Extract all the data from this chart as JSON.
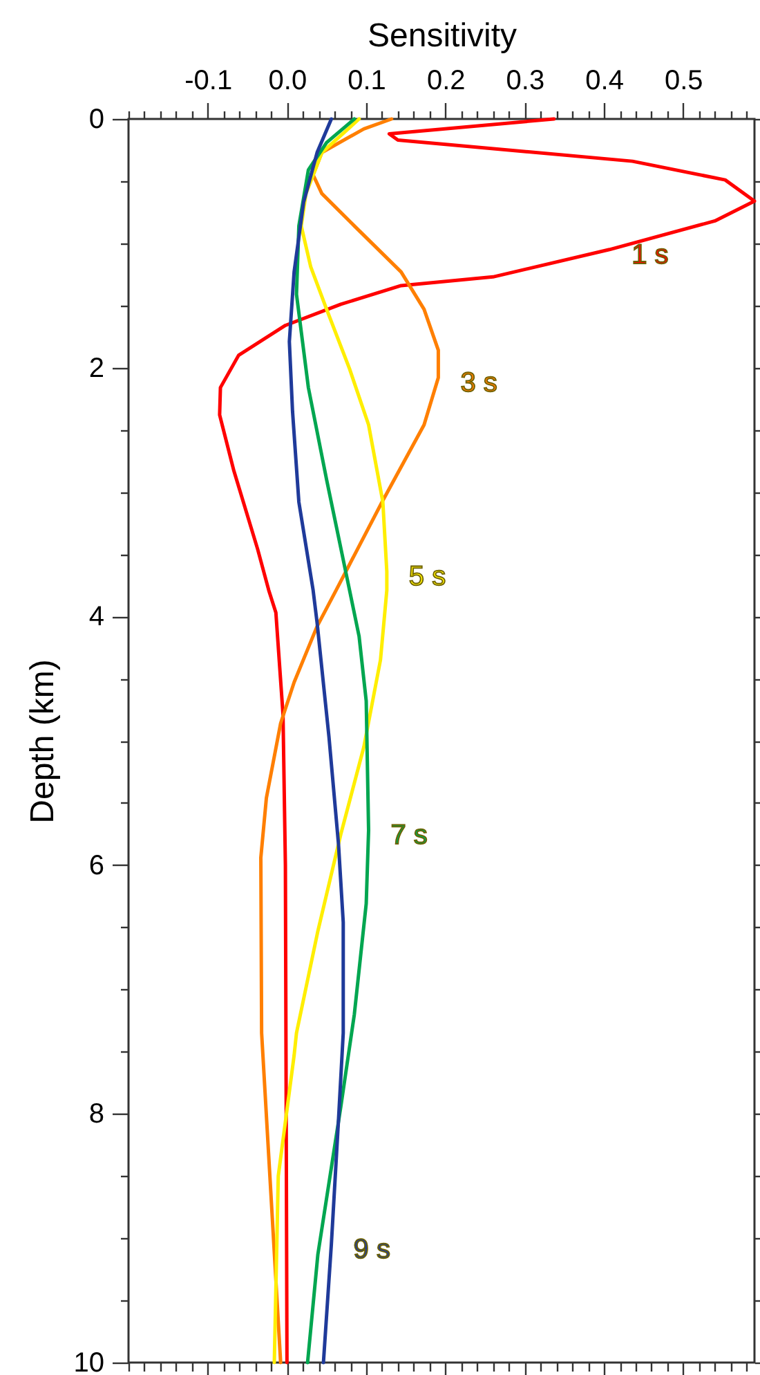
{
  "chart_data": {
    "type": "line",
    "xlabel": "Sensitivity",
    "ylabel": "Depth (km)",
    "xlim": [
      -0.2,
      0.59
    ],
    "ylim": [
      10,
      0
    ],
    "xticks": [
      {
        "value": -0.2,
        "label": null
      },
      {
        "value": -0.18,
        "label": null
      },
      {
        "value": -0.16,
        "label": null
      },
      {
        "value": -0.14,
        "label": null
      },
      {
        "value": -0.12,
        "label": null
      },
      -0.1,
      {
        "value": -0.08,
        "label": null
      },
      {
        "value": -0.06,
        "label": null
      },
      {
        "value": -0.04,
        "label": null
      },
      {
        "value": -0.02,
        "label": null
      },
      {
        "value": 0,
        "label": "0.0"
      },
      {
        "value": 0.02,
        "label": null
      },
      {
        "value": 0.04,
        "label": null
      },
      {
        "value": 0.06,
        "label": null
      },
      {
        "value": 0.08,
        "label": null
      },
      0.1,
      {
        "value": 0.12,
        "label": null
      },
      {
        "value": 0.14,
        "label": null
      },
      {
        "value": 0.16,
        "label": null
      },
      {
        "value": 0.18,
        "label": null
      },
      0.2,
      {
        "value": 0.22,
        "label": null
      },
      {
        "value": 0.24,
        "label": null
      },
      {
        "value": 0.26,
        "label": null
      },
      {
        "value": 0.28,
        "label": null
      },
      0.3,
      {
        "value": 0.32,
        "label": null
      },
      {
        "value": 0.34,
        "label": null
      },
      {
        "value": 0.36,
        "label": null
      },
      {
        "value": 0.38,
        "label": null
      },
      0.4,
      {
        "value": 0.42,
        "label": null
      },
      {
        "value": 0.44,
        "label": null
      },
      {
        "value": 0.46,
        "label": null
      },
      {
        "value": 0.48,
        "label": null
      },
      0.5,
      {
        "value": 0.52,
        "label": null
      },
      {
        "value": 0.54,
        "label": null
      },
      {
        "value": 0.56,
        "label": null
      },
      {
        "value": 0.58,
        "label": null
      }
    ],
    "yticks": [
      0,
      {
        "value": 0.5,
        "label": null
      },
      {
        "value": 1,
        "label": null
      },
      {
        "value": 1.5,
        "label": null
      },
      2,
      {
        "value": 2.5,
        "label": null
      },
      {
        "value": 3,
        "label": null
      },
      {
        "value": 3.5,
        "label": null
      },
      4,
      {
        "value": 4.5,
        "label": null
      },
      {
        "value": 5,
        "label": null
      },
      {
        "value": 5.5,
        "label": null
      },
      6,
      {
        "value": 6.5,
        "label": null
      },
      {
        "value": 7,
        "label": null
      },
      {
        "value": 7.5,
        "label": null
      },
      8,
      {
        "value": 8.5,
        "label": null
      },
      {
        "value": 9,
        "label": null
      },
      {
        "value": 9.5,
        "label": null
      },
      10
    ],
    "grid": false,
    "marker": "none",
    "line_style": "solid",
    "series": [
      {
        "color": "#ff0000",
        "x": [
          0.337,
          0.129,
          0.14,
          0.436,
          0.553,
          0.59,
          0.54,
          0.407,
          0.26,
          0.144,
          0.068,
          -0.002,
          -0.061,
          -0.084,
          -0.085,
          -0.067,
          -0.037,
          -0.023,
          -0.014,
          -0.005,
          -0.002,
          0.0
        ],
        "values": [
          0,
          0.12,
          0.17,
          0.34,
          0.49,
          0.66,
          0.82,
          1.05,
          1.27,
          1.34,
          1.49,
          1.66,
          1.9,
          2.16,
          2.38,
          2.83,
          3.46,
          3.79,
          3.97,
          4.79,
          6,
          10
        ]
      },
      {
        "color": "#ff7f00",
        "x": [
          0.132,
          0.097,
          0.044,
          0.033,
          0.044,
          0.085,
          0.144,
          0.173,
          0.191,
          0.191,
          0.173,
          0.12,
          0.062,
          0.038,
          0.009,
          -0.008,
          -0.026,
          -0.033,
          -0.032,
          -0.008
        ],
        "values": [
          0,
          0.08,
          0.27,
          0.45,
          0.6,
          0.86,
          1.23,
          1.53,
          1.86,
          2.08,
          2.46,
          3.08,
          3.79,
          4.08,
          4.53,
          4.86,
          5.46,
          5.94,
          7.35,
          10
        ]
      },
      {
        "color": "#ffee00",
        "x": [
          0.091,
          0.044,
          0.024,
          0.018,
          0.03,
          0.05,
          0.079,
          0.103,
          0.121,
          0.126,
          0.126,
          0.118,
          0.097,
          0.068,
          0.039,
          0.012,
          0.009,
          -0.011,
          -0.016
        ],
        "values": [
          0,
          0.27,
          0.6,
          0.86,
          1.19,
          1.53,
          2.01,
          2.46,
          3.08,
          3.64,
          3.79,
          4.35,
          5.05,
          5.75,
          6.53,
          7.35,
          7.53,
          8.5,
          10
        ]
      },
      {
        "color": "#00a650",
        "x": [
          0.085,
          0.05,
          0.027,
          0.015,
          0.012,
          0.027,
          0.05,
          0.079,
          0.091,
          0.1,
          0.103,
          0.1,
          0.085,
          0.068,
          0.039,
          0.026
        ],
        "values": [
          0,
          0.19,
          0.41,
          0.86,
          1.41,
          2.16,
          2.9,
          3.79,
          4.16,
          4.68,
          5.72,
          6.31,
          7.2,
          7.94,
          9.13,
          10
        ]
      },
      {
        "color": "#1f3a9a",
        "x": [
          0.056,
          0.038,
          0.021,
          0.009,
          0.003,
          0.007,
          0.015,
          0.033,
          0.038,
          0.053,
          0.065,
          0.071,
          0.071,
          0.065,
          0.056,
          0.046
        ],
        "values": [
          0,
          0.27,
          0.67,
          1.23,
          1.79,
          2.35,
          3.08,
          3.79,
          4.05,
          4.97,
          5.83,
          6.46,
          7.35,
          8.05,
          9.05,
          10
        ]
      }
    ],
    "annotations": [
      {
        "text": "1 s",
        "x": 0.407,
        "y": 1.05
      },
      {
        "text": "3 s",
        "x": 0.191,
        "y": 2.08
      },
      {
        "text": "5 s",
        "x": 0.126,
        "y": 3.64
      },
      {
        "text": "7 s",
        "x": 0.103,
        "y": 5.72
      },
      {
        "text": "9 s",
        "x": 0.056,
        "y": 9.05
      }
    ]
  }
}
